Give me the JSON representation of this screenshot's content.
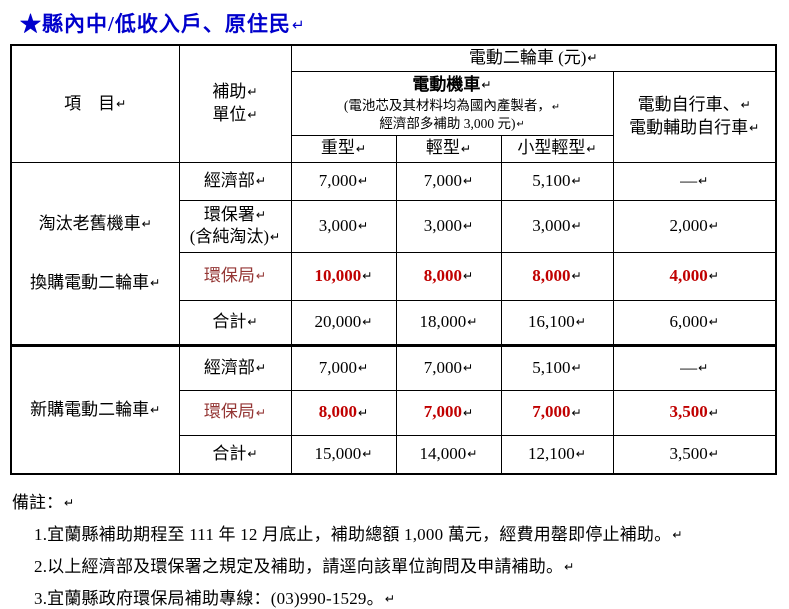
{
  "marks": {
    "return": "↵"
  },
  "title": "★縣內中/低收入戶、原住民",
  "table": {
    "header": {
      "item_label": "項　目",
      "unit_lines": [
        "補助",
        "單位"
      ],
      "group_title": "電動二輪車 (元)",
      "moto_title": "電動機車",
      "moto_note_lines": [
        "(電池芯及其材料均為國內產製者，",
        "經濟部多補助 3,000 元)"
      ],
      "bike_lines": [
        "電動自行車、",
        "電動輔助自行車"
      ],
      "col_heavy": "重型",
      "col_light": "輕型",
      "col_small_light": "小型輕型"
    },
    "sections": [
      {
        "item_lines": [
          "淘汰老舊機車",
          "換購電動二輪車"
        ],
        "rows": [
          {
            "unit_lines": [
              "經濟部"
            ],
            "values": [
              "7,000",
              "7,000",
              "5,100",
              "—"
            ],
            "highlight": false
          },
          {
            "unit_lines": [
              "環保署",
              "(含純淘汰)"
            ],
            "values": [
              "3,000",
              "3,000",
              "3,000",
              "2,000"
            ],
            "highlight": false
          },
          {
            "unit_lines": [
              "環保局"
            ],
            "values": [
              "10,000",
              "8,000",
              "8,000",
              "4,000"
            ],
            "highlight": true
          },
          {
            "unit_lines": [
              "合計"
            ],
            "values": [
              "20,000",
              "18,000",
              "16,100",
              "6,000"
            ],
            "highlight": false
          }
        ]
      },
      {
        "item_lines": [
          "新購電動二輪車"
        ],
        "rows": [
          {
            "unit_lines": [
              "經濟部"
            ],
            "values": [
              "7,000",
              "7,000",
              "5,100",
              "—"
            ],
            "highlight": false
          },
          {
            "unit_lines": [
              "環保局"
            ],
            "values": [
              "8,000",
              "7,000",
              "7,000",
              "3,500"
            ],
            "highlight": true
          },
          {
            "unit_lines": [
              "合計"
            ],
            "values": [
              "15,000",
              "14,000",
              "12,100",
              "3,500"
            ],
            "highlight": false
          }
        ]
      }
    ]
  },
  "notes": {
    "heading": "備註：",
    "items": [
      "1.宜蘭縣補助期程至 111 年 12 月底止，補助總額 1,000 萬元，經費用罄即停止補助。",
      "2.以上經濟部及環保署之規定及補助，請逕向該單位詢問及申請補助。",
      "3.宜蘭縣政府環保局補助專線：(03)990-1529。"
    ]
  },
  "colors": {
    "title_blue": "#0000cc",
    "highlight_value_red": "#c00000",
    "highlight_label_dark_red": "#943634",
    "border_black": "#000000"
  }
}
